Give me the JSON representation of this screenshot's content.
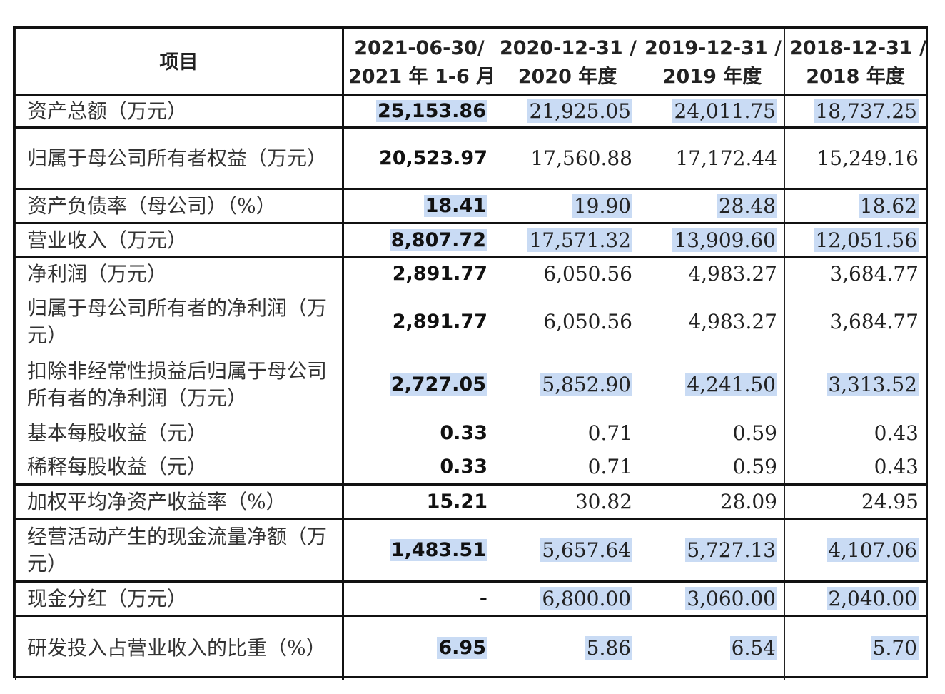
{
  "header": {
    "item": "项目",
    "columns": [
      {
        "line1": "2021-06-30/",
        "line2": "2021 年 1-6 月"
      },
      {
        "line1": "2020-12-31 /",
        "line2": "2020 年度"
      },
      {
        "line1": "2019-12-31 /",
        "line2": "2019 年度"
      },
      {
        "line1": "2018-12-31 /",
        "line2": "2018 年度"
      }
    ]
  },
  "rows": [
    {
      "label": "资产总额（万元）",
      "values": [
        "25,153.86",
        "21,925.05",
        "24,011.75",
        "18,737.25"
      ],
      "highlight": [
        true,
        true,
        true,
        true
      ]
    },
    {
      "label": "归属于母公司所有者权益（万元）",
      "values": [
        "20,523.97",
        "17,560.88",
        "17,172.44",
        "15,249.16"
      ],
      "highlight": [
        false,
        false,
        false,
        false
      ]
    },
    {
      "label": "资产负债率（母公司）（%）",
      "values": [
        "18.41",
        "19.90",
        "28.48",
        "18.62"
      ],
      "highlight": [
        true,
        true,
        true,
        true
      ]
    },
    {
      "label": "营业收入（万元）",
      "values": [
        "8,807.72",
        "17,571.32",
        "13,909.60",
        "12,051.56"
      ],
      "highlight": [
        true,
        true,
        true,
        true
      ]
    },
    {
      "label": "净利润（万元）",
      "values": [
        "2,891.77",
        "6,050.56",
        "4,983.27",
        "3,684.77"
      ],
      "highlight": [
        false,
        false,
        false,
        false
      ]
    },
    {
      "label": "归属于母公司所有者的净利润（万元）",
      "values": [
        "2,891.77",
        "6,050.56",
        "4,983.27",
        "3,684.77"
      ],
      "highlight": [
        false,
        false,
        false,
        false
      ]
    },
    {
      "label": "扣除非经常性损益后归属于母公司所有者的净利润（万元）",
      "values": [
        "2,727.05",
        "5,852.90",
        "4,241.50",
        "3,313.52"
      ],
      "highlight": [
        true,
        true,
        true,
        true
      ]
    },
    {
      "label": "基本每股收益（元）",
      "values": [
        "0.33",
        "0.71",
        "0.59",
        "0.43"
      ],
      "highlight": [
        false,
        false,
        false,
        false
      ]
    },
    {
      "label": "稀释每股收益（元）",
      "values": [
        "0.33",
        "0.71",
        "0.59",
        "0.43"
      ],
      "highlight": [
        false,
        false,
        false,
        false
      ]
    },
    {
      "label": "加权平均净资产收益率（%）",
      "values": [
        "15.21",
        "30.82",
        "28.09",
        "24.95"
      ],
      "highlight": [
        false,
        false,
        false,
        false
      ]
    },
    {
      "label": "经营活动产生的现金流量净额（万元）",
      "values": [
        "1,483.51",
        "5,657.64",
        "5,727.13",
        "4,107.06"
      ],
      "highlight": [
        true,
        true,
        true,
        true
      ]
    },
    {
      "label": "现金分红（万元）",
      "values": [
        "-",
        "6,800.00",
        "3,060.00",
        "2,040.00"
      ],
      "highlight": [
        false,
        true,
        true,
        true
      ]
    },
    {
      "label": "研发投入占营业收入的比重（%）",
      "values": [
        "6.95",
        "5.86",
        "6.54",
        "5.70"
      ],
      "highlight": [
        true,
        true,
        true,
        true
      ]
    }
  ],
  "colors": {
    "highlight": "#c9dbf4",
    "border": "#111111"
  }
}
